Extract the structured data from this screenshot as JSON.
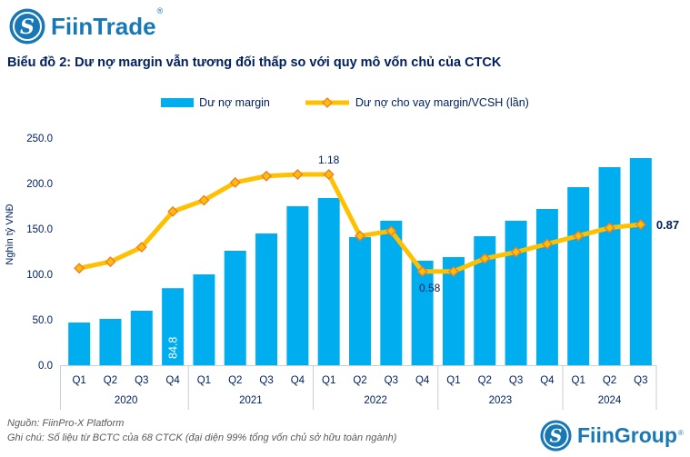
{
  "header": {
    "logo_text": "FiinTrade",
    "registered_mark": "®"
  },
  "title": "Biểu đồ 2: Dư nợ margin vẫn tương đối thấp so với quy mô vốn chủ của CTCK",
  "chart_data": {
    "type": "bar",
    "subtype": "combo-bar-line-dual-axis",
    "title": "Biểu đồ 2: Dư nợ margin vẫn tương đối thấp so với quy mô vốn chủ của CTCK",
    "xlabel": "",
    "ylabel": "Nghìn tỷ VNĐ",
    "ylim": [
      0,
      250
    ],
    "y_ticks": [
      "0.0",
      "50.0",
      "100.0",
      "150.0",
      "200.0",
      "250.0"
    ],
    "grid": false,
    "legend_position": "top-center",
    "categories": [
      "Q1",
      "Q2",
      "Q3",
      "Q4",
      "Q1",
      "Q2",
      "Q3",
      "Q4",
      "Q1",
      "Q2",
      "Q3",
      "Q4",
      "Q1",
      "Q2",
      "Q3",
      "Q4",
      "Q1",
      "Q2",
      "Q3"
    ],
    "year_groups": [
      {
        "label": "2020",
        "count": 4
      },
      {
        "label": "2021",
        "count": 4
      },
      {
        "label": "2022",
        "count": 4
      },
      {
        "label": "2023",
        "count": 4
      },
      {
        "label": "2024",
        "count": 3
      }
    ],
    "series": [
      {
        "name": "Dư nợ margin",
        "type": "bar",
        "axis": "primary",
        "color": "#00AEEF",
        "values": [
          47,
          51,
          60,
          84.8,
          100,
          126,
          145,
          175,
          184,
          141,
          159,
          115,
          119,
          142,
          159,
          172,
          196,
          218,
          228
        ]
      },
      {
        "name": "Dư nợ cho vay margin/VCSH (lần)",
        "type": "line",
        "axis": "secondary",
        "color": "#FFC000",
        "marker": "diamond",
        "marker_stroke": "#ED7D31",
        "values": [
          0.6,
          0.64,
          0.73,
          0.95,
          1.02,
          1.13,
          1.17,
          1.18,
          1.18,
          0.8,
          0.83,
          0.58,
          0.58,
          0.66,
          0.7,
          0.75,
          0.8,
          0.85,
          0.87
        ]
      }
    ],
    "secondary_to_primary_scale": 178,
    "annotations": [
      {
        "series": 0,
        "index": 3,
        "text": "84.8",
        "placement": "inside-bar-rotated",
        "color": "#FFFFFF"
      },
      {
        "series": 1,
        "index": 8,
        "text": "1.18",
        "placement": "above",
        "color": "#002060"
      },
      {
        "series": 1,
        "index": 11,
        "text": "0.58",
        "placement": "below",
        "color": "#002060"
      },
      {
        "series": 1,
        "index": 18,
        "text": "0.87",
        "placement": "right",
        "bold": true,
        "color": "#002060"
      }
    ]
  },
  "footer": {
    "source": "Nguồn: FiinPro-X Platform",
    "note": "Ghi chú: Số liệu từ BCTC của 68 CTCK (đại diện 99% tổng vốn chủ sở hữu toàn ngành)",
    "logo_text": "FiinGroup",
    "registered_mark": "®"
  },
  "colors": {
    "brand_blue": "#1878B5",
    "navy_text": "#002060",
    "bar_blue": "#00AEEF",
    "line_gold": "#FFC000",
    "marker_orange": "#ED7D31",
    "axis_gray": "#C9CDD4",
    "footer_gray": "#595959"
  }
}
